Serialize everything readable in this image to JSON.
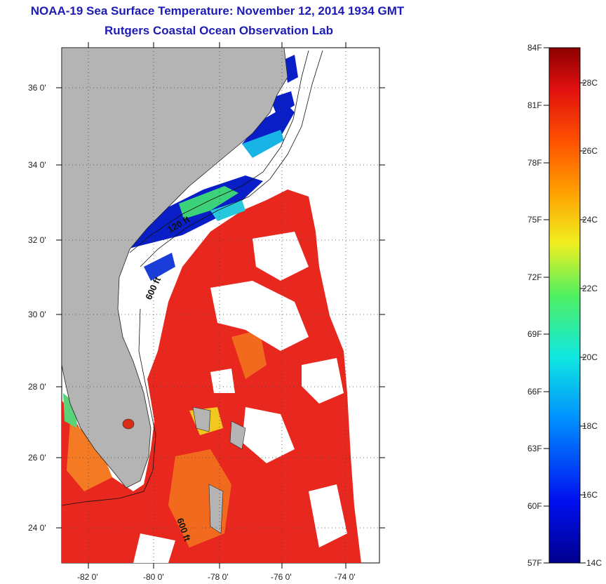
{
  "title": "NOAA-19 Sea Surface Temperature:  November 12, 2014 1934 GMT",
  "subtitle": "Rutgers Coastal Ocean Observation Lab",
  "lat_ticks": [
    "36 0'",
    "34 0'",
    "32 0'",
    "30 0'",
    "28 0'",
    "26 0'",
    "24 0'"
  ],
  "lon_ticks": [
    "-82 0'",
    "-80 0'",
    "-78 0'",
    "-76 0'",
    "-74 0'"
  ],
  "contour_labels": [
    "120 ft",
    "600 ft",
    "600 ft"
  ],
  "colorbar": {
    "f_labels": [
      "84F",
      "81F",
      "78F",
      "75F",
      "72F",
      "69F",
      "66F",
      "63F",
      "60F",
      "57F"
    ],
    "c_labels": [
      "28C",
      "26C",
      "24C",
      "22C",
      "20C",
      "18C",
      "16C",
      "14C"
    ]
  },
  "colors": {
    "title": "#1c1cb4",
    "land": "#b4b4b4",
    "warm": "#e8281e",
    "cold": "#0a1ec8"
  }
}
